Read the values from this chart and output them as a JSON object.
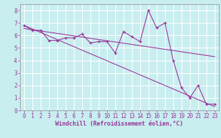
{
  "xlabel": "Windchill (Refroidissement éolien,°C)",
  "bg_color": "#c8eef0",
  "line_color": "#993399",
  "grid_color": "#ffffff",
  "hours": [
    0,
    1,
    2,
    3,
    4,
    5,
    6,
    7,
    8,
    9,
    10,
    11,
    12,
    13,
    14,
    15,
    16,
    17,
    18,
    19,
    20,
    21,
    22,
    23
  ],
  "values": [
    6.8,
    6.4,
    6.4,
    5.6,
    5.6,
    5.8,
    5.8,
    6.1,
    5.4,
    5.5,
    5.5,
    4.6,
    6.3,
    5.9,
    5.5,
    8.0,
    6.6,
    7.0,
    4.0,
    1.8,
    1.0,
    2.0,
    0.5,
    0.5
  ],
  "trend1_x": [
    0,
    23
  ],
  "trend1_y": [
    6.8,
    0.3
  ],
  "trend2_x": [
    0,
    23
  ],
  "trend2_y": [
    6.55,
    4.3
  ],
  "ylim": [
    0,
    8.5
  ],
  "xlim": [
    -0.5,
    23.5
  ],
  "yticks": [
    0,
    1,
    2,
    3,
    4,
    5,
    6,
    7,
    8
  ],
  "xticks": [
    0,
    1,
    2,
    3,
    4,
    5,
    6,
    7,
    8,
    9,
    10,
    11,
    12,
    13,
    14,
    15,
    16,
    17,
    18,
    19,
    20,
    21,
    22,
    23
  ],
  "tick_fontsize": 5.5,
  "xlabel_fontsize": 6.0,
  "xlabel_fontweight": "bold"
}
